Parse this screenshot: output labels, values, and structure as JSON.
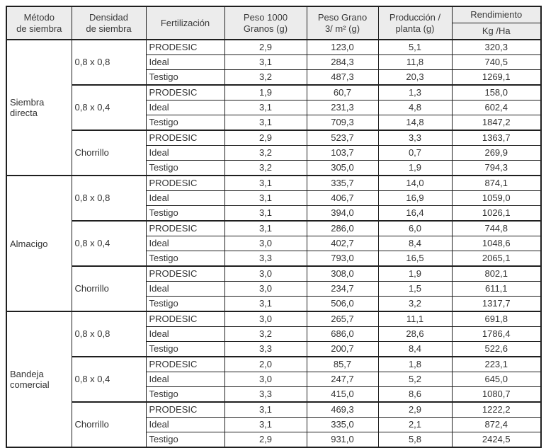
{
  "table": {
    "headers": {
      "metodo": [
        "Método",
        "de siembra"
      ],
      "densidad": [
        "Densidad",
        "de siembra"
      ],
      "fertilizacion": [
        "Fertilización"
      ],
      "peso_1000": [
        "Peso 1000",
        "Granos (g)"
      ],
      "peso_grano": [
        "Peso Grano",
        "3/ m² (g)"
      ],
      "produccion": [
        "Producción /",
        "planta (g)"
      ],
      "rendimiento": {
        "title": "Rendimiento",
        "unit": "Kg /Ha"
      }
    },
    "colors": {
      "header_bg": "#ececec",
      "border": "#1f1f1f",
      "text": "#333333"
    },
    "groups": [
      {
        "method": [
          "Siembra",
          "directa"
        ],
        "densities": [
          {
            "density": "0,8 x 0,8",
            "rows": [
              {
                "fertilizacion": "PRODESIC",
                "peso_1000": "2,9",
                "peso_grano": "123,0",
                "produccion": "5,1",
                "rendimiento": "320,3"
              },
              {
                "fertilizacion": "Ideal",
                "peso_1000": "3,1",
                "peso_grano": "284,3",
                "produccion": "11,8",
                "rendimiento": "740,5"
              },
              {
                "fertilizacion": "Testigo",
                "peso_1000": "3,2",
                "peso_grano": "487,3",
                "produccion": "20,3",
                "rendimiento": "1269,1"
              }
            ]
          },
          {
            "density": "0,8 x 0,4",
            "rows": [
              {
                "fertilizacion": "PRODESIC",
                "peso_1000": "1,9",
                "peso_grano": "60,7",
                "produccion": "1,3",
                "rendimiento": "158,0"
              },
              {
                "fertilizacion": "Ideal",
                "peso_1000": "3,1",
                "peso_grano": "231,3",
                "produccion": "4,8",
                "rendimiento": "602,4"
              },
              {
                "fertilizacion": "Testigo",
                "peso_1000": "3,1",
                "peso_grano": "709,3",
                "produccion": "14,8",
                "rendimiento": "1847,2"
              }
            ]
          },
          {
            "density": "Chorrillo",
            "rows": [
              {
                "fertilizacion": "PRODESIC",
                "peso_1000": "2,9",
                "peso_grano": "523,7",
                "produccion": "3,3",
                "rendimiento": "1363,7"
              },
              {
                "fertilizacion": "Ideal",
                "peso_1000": "3,2",
                "peso_grano": "103,7",
                "produccion": "0,7",
                "rendimiento": "269,9"
              },
              {
                "fertilizacion": "Testigo",
                "peso_1000": "3,2",
                "peso_grano": "305,0",
                "produccion": "1,9",
                "rendimiento": "794,3"
              }
            ]
          }
        ]
      },
      {
        "method": [
          "Almacigo"
        ],
        "densities": [
          {
            "density": "0,8 x 0,8",
            "rows": [
              {
                "fertilizacion": "PRODESIC",
                "peso_1000": "3,1",
                "peso_grano": "335,7",
                "produccion": "14,0",
                "rendimiento": "874,1"
              },
              {
                "fertilizacion": "Ideal",
                "peso_1000": "3,1",
                "peso_grano": "406,7",
                "produccion": "16,9",
                "rendimiento": "1059,0"
              },
              {
                "fertilizacion": "Testigo",
                "peso_1000": "3,1",
                "peso_grano": "394,0",
                "produccion": "16,4",
                "rendimiento": "1026,1"
              }
            ]
          },
          {
            "density": "0,8 x 0,4",
            "rows": [
              {
                "fertilizacion": "PRODESIC",
                "peso_1000": "3,1",
                "peso_grano": "286,0",
                "produccion": "6,0",
                "rendimiento": "744,8"
              },
              {
                "fertilizacion": "Ideal",
                "peso_1000": "3,0",
                "peso_grano": "402,7",
                "produccion": "8,4",
                "rendimiento": "1048,6"
              },
              {
                "fertilizacion": "Testigo",
                "peso_1000": "3,3",
                "peso_grano": "793,0",
                "produccion": "16,5",
                "rendimiento": "2065,1"
              }
            ]
          },
          {
            "density": "Chorrillo",
            "rows": [
              {
                "fertilizacion": "PRODESIC",
                "peso_1000": "3,0",
                "peso_grano": "308,0",
                "produccion": "1,9",
                "rendimiento": "802,1"
              },
              {
                "fertilizacion": "Ideal",
                "peso_1000": "3,0",
                "peso_grano": "234,7",
                "produccion": "1,5",
                "rendimiento": "611,1"
              },
              {
                "fertilizacion": "Testigo",
                "peso_1000": "3,1",
                "peso_grano": "506,0",
                "produccion": "3,2",
                "rendimiento": "1317,7"
              }
            ]
          }
        ]
      },
      {
        "method": [
          "Bandeja",
          "comercial"
        ],
        "densities": [
          {
            "density": "0,8 x 0,8",
            "rows": [
              {
                "fertilizacion": "PRODESIC",
                "peso_1000": "3,0",
                "peso_grano": "265,7",
                "produccion": "11,1",
                "rendimiento": "691,8"
              },
              {
                "fertilizacion": "Ideal",
                "peso_1000": "3,2",
                "peso_grano": "686,0",
                "produccion": "28,6",
                "rendimiento": "1786,4"
              },
              {
                "fertilizacion": "Testigo",
                "peso_1000": "3,3",
                "peso_grano": "200,7",
                "produccion": "8,4",
                "rendimiento": "522,6"
              }
            ]
          },
          {
            "density": "0,8 x 0,4",
            "rows": [
              {
                "fertilizacion": "PRODESIC",
                "peso_1000": "2,0",
                "peso_grano": "85,7",
                "produccion": "1,8",
                "rendimiento": "223,1"
              },
              {
                "fertilizacion": "Ideal",
                "peso_1000": "3,0",
                "peso_grano": "247,7",
                "produccion": "5,2",
                "rendimiento": "645,0"
              },
              {
                "fertilizacion": "Testigo",
                "peso_1000": "3,3",
                "peso_grano": "415,0",
                "produccion": "8,6",
                "rendimiento": "1080,7"
              }
            ]
          },
          {
            "density": "Chorrillo",
            "rows": [
              {
                "fertilizacion": "PRODESIC",
                "peso_1000": "3,1",
                "peso_grano": "469,3",
                "produccion": "2,9",
                "rendimiento": "1222,2"
              },
              {
                "fertilizacion": "Ideal",
                "peso_1000": "3,1",
                "peso_grano": "335,0",
                "produccion": "2,1",
                "rendimiento": "872,4"
              },
              {
                "fertilizacion": "Testigo",
                "peso_1000": "2,9",
                "peso_grano": "931,0",
                "produccion": "5,8",
                "rendimiento": "2424,5"
              }
            ]
          }
        ]
      }
    ]
  }
}
